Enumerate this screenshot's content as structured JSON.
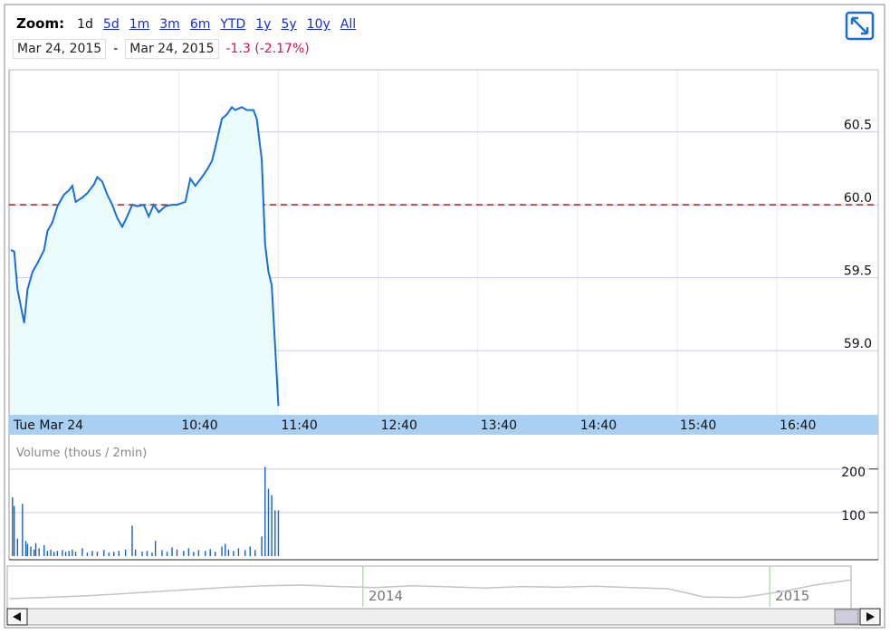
{
  "toolbar": {
    "zoom_label": "Zoom:",
    "zoom_options": [
      "1d",
      "5d",
      "1m",
      "3m",
      "6m",
      "YTD",
      "1y",
      "5y",
      "10y",
      "All"
    ],
    "active_zoom": "1d",
    "start_date": "Mar 24, 2015",
    "separator": "-",
    "end_date": "Mar 24, 2015",
    "change": "-1.3 (-2.17%)"
  },
  "chart_data": [
    {
      "type": "line",
      "color": "#1a6fd6",
      "fill": "#e9fbfb",
      "x": [
        539,
        541,
        543,
        547,
        549,
        552,
        555,
        559,
        561,
        564,
        567,
        571,
        574,
        576,
        578,
        582,
        585,
        589,
        591,
        594,
        597,
        600,
        603,
        606,
        609,
        612,
        615,
        619,
        622,
        625,
        628,
        632,
        636,
        639,
        644,
        647,
        650,
        654,
        657,
        660,
        662,
        666,
        669,
        672,
        674,
        678,
        681,
        685,
        687,
        690,
        692,
        694,
        696,
        698,
        700
      ],
      "values": [
        59.69,
        59.68,
        59.42,
        59.19,
        59.42,
        59.54,
        59.6,
        59.69,
        59.82,
        59.88,
        59.99,
        60.07,
        60.1,
        60.13,
        60.02,
        60.05,
        60.08,
        60.14,
        60.19,
        60.16,
        60.07,
        60.0,
        59.91,
        59.85,
        59.92,
        60.0,
        59.99,
        60.0,
        59.92,
        60.0,
        59.95,
        59.99,
        60.0,
        60.0,
        60.02,
        60.18,
        60.13,
        60.19,
        60.24,
        60.3,
        60.39,
        60.59,
        60.62,
        60.67,
        60.65,
        60.67,
        60.65,
        60.65,
        60.59,
        60.31,
        59.73,
        59.54,
        59.45,
        59.04,
        58.62
      ],
      "xlim": [
        539,
        1061
      ],
      "xticks": [
        {
          "value": 539,
          "label": "Tue Mar 24"
        },
        {
          "value": 640,
          "label": "10:40"
        },
        {
          "value": 700,
          "label": "11:40"
        },
        {
          "value": 760,
          "label": "12:40"
        },
        {
          "value": 820,
          "label": "13:40"
        },
        {
          "value": 880,
          "label": "14:40"
        },
        {
          "value": 940,
          "label": "15:40"
        },
        {
          "value": 1000,
          "label": "16:40"
        }
      ],
      "ylim": [
        58.56,
        60.92
      ],
      "yticks": [
        {
          "value": 59,
          "label": "59.0"
        },
        59.5,
        {
          "value": 60,
          "label": "60.0"
        },
        60.5
      ],
      "reference_line": 60,
      "reference_color": "#9b2222",
      "grid": true
    },
    {
      "type": "bar",
      "title": "Volume (thous / 2min)",
      "color": "#1a5fc0",
      "x": [
        540,
        541,
        543,
        546,
        548,
        549,
        551,
        553,
        554,
        556,
        559,
        561,
        563,
        565,
        567,
        570,
        572,
        574,
        576,
        578,
        582,
        585,
        588,
        591,
        595,
        598,
        601,
        604,
        608,
        612,
        614,
        618,
        621,
        624,
        626,
        630,
        633,
        636,
        639,
        643,
        646,
        649,
        652,
        656,
        659,
        662,
        666,
        668,
        670,
        673,
        676,
        680,
        683,
        686,
        690,
        692,
        694,
        696,
        698,
        700
      ],
      "values": [
        135,
        115,
        40,
        120,
        35,
        28,
        22,
        15,
        30,
        18,
        25,
        12,
        15,
        10,
        12,
        14,
        10,
        12,
        15,
        10,
        18,
        8,
        12,
        10,
        14,
        8,
        10,
        12,
        15,
        70,
        15,
        10,
        12,
        8,
        35,
        14,
        10,
        20,
        15,
        12,
        18,
        10,
        14,
        12,
        16,
        10,
        22,
        28,
        15,
        12,
        18,
        14,
        22,
        14,
        45,
        205,
        155,
        140,
        105,
        105
      ],
      "xlim": [
        539,
        1061
      ],
      "ylim": [
        0,
        262
      ],
      "yticks": [
        100,
        200
      ],
      "grid": true
    },
    {
      "type": "line",
      "color": "#c4c4c4",
      "x": [
        2013.13,
        2013.22,
        2013.31,
        2013.4,
        2013.49,
        2013.58,
        2013.67,
        2013.76,
        2013.85,
        2013.94,
        2014.03,
        2014.12,
        2014.21,
        2014.3,
        2014.39,
        2014.48,
        2014.57,
        2014.66,
        2014.75,
        2014.84,
        2014.93,
        2015.02,
        2015.11,
        2015.2
      ],
      "values": [
        45.6,
        46.5,
        47.5,
        48.9,
        50.5,
        52,
        53.5,
        54.5,
        55,
        54,
        53.3,
        54.5,
        53.8,
        53,
        54,
        53.5,
        54.2,
        53.3,
        52.5,
        46.7,
        46.5,
        50,
        55,
        58.6
      ],
      "xlim": [
        2013.13,
        2015.2
      ],
      "xticks": [
        2014,
        2015
      ],
      "ylim": [
        40,
        65
      ]
    }
  ]
}
